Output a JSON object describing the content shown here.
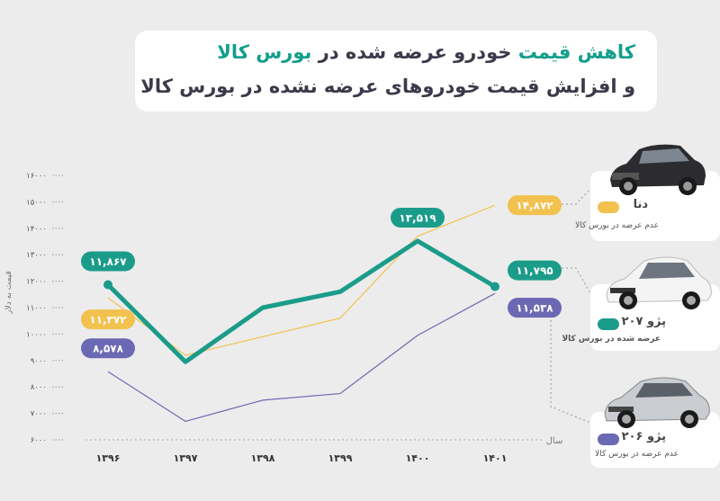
{
  "header": {
    "line1_prefix": "کاهش قیمت",
    "line1_mid": " خودرو عرضه شده در ",
    "line1_suffix": "بورس کالا",
    "line2": "و افزایش قیمت خودروهای عرضه نشده در بورس کالا"
  },
  "legend": {
    "dena": {
      "title": "دنا",
      "subtitle": "عدم عرضه در بورس کالا",
      "color": "#f2c14e"
    },
    "peugeot207": {
      "title": "پژو ۲۰۷",
      "subtitle": "عرضه شده در بورس کالا",
      "color": "#1b9c8a"
    },
    "peugeot206": {
      "title": "پژو ۲۰۶",
      "subtitle": "عدم عرضه در بورس کالا",
      "color": "#6b68b4"
    }
  },
  "chart_data": {
    "type": "line",
    "title": "کاهش قیمت خودرو عرضه شده در بورس کالا و افزایش قیمت خودروهای عرضه نشده در بورس کالا",
    "xlabel": "سال",
    "ylabel": "قیمت به دلار",
    "categories": [
      "۱۳۹۶",
      "۱۳۹۷",
      "۱۳۹۸",
      "۱۳۹۹",
      "۱۴۰۰",
      "۱۴۰۱"
    ],
    "ylim": [
      6000,
      16000
    ],
    "yticks": [
      "۶۰۰۰",
      "۷۰۰۰",
      "۸۰۰۰",
      "۹۰۰۰",
      "۱۰۰۰۰",
      "۱۱۰۰۰",
      "۱۲۰۰۰",
      "۱۳۰۰۰",
      "۱۴۰۰۰",
      "۱۵۰۰۰",
      "۱۶۰۰۰"
    ],
    "grid": false,
    "series": [
      {
        "name": "دنا",
        "color": "#f2c14e",
        "width": 1.2,
        "values": [
          11372,
          9200,
          9900,
          10600,
          13700,
          14872
        ]
      },
      {
        "name": "پژو ۲۰۷",
        "color": "#1b9c8a",
        "width": 5,
        "values": [
          11867,
          8950,
          11000,
          11600,
          13519,
          11795
        ]
      },
      {
        "name": "پژو ۲۰۶",
        "color": "#6b68b4",
        "width": 1.2,
        "values": [
          8578,
          6700,
          7500,
          7750,
          9950,
          11538
        ]
      }
    ],
    "data_labels": [
      {
        "series": 1,
        "index": 0,
        "text": "۱۱,۸۶۷",
        "color": "#1b9c8a",
        "side": "above"
      },
      {
        "series": 0,
        "index": 0,
        "text": "۱۱,۳۷۲",
        "color": "#f2c14e",
        "side": "below"
      },
      {
        "series": 2,
        "index": 0,
        "text": "۸,۵۷۸",
        "color": "#6b68b4",
        "side": "above"
      },
      {
        "series": 1,
        "index": 4,
        "text": "۱۳,۵۱۹",
        "color": "#1b9c8a",
        "side": "above"
      },
      {
        "series": 0,
        "index": 5,
        "text": "۱۴,۸۷۲",
        "color": "#f2c14e",
        "side": "right"
      },
      {
        "series": 1,
        "index": 5,
        "text": "۱۱,۷۹۵",
        "color": "#1b9c8a",
        "side": "right-up"
      },
      {
        "series": 2,
        "index": 5,
        "text": "۱۱,۵۳۸",
        "color": "#6b68b4",
        "side": "right-down"
      }
    ]
  }
}
